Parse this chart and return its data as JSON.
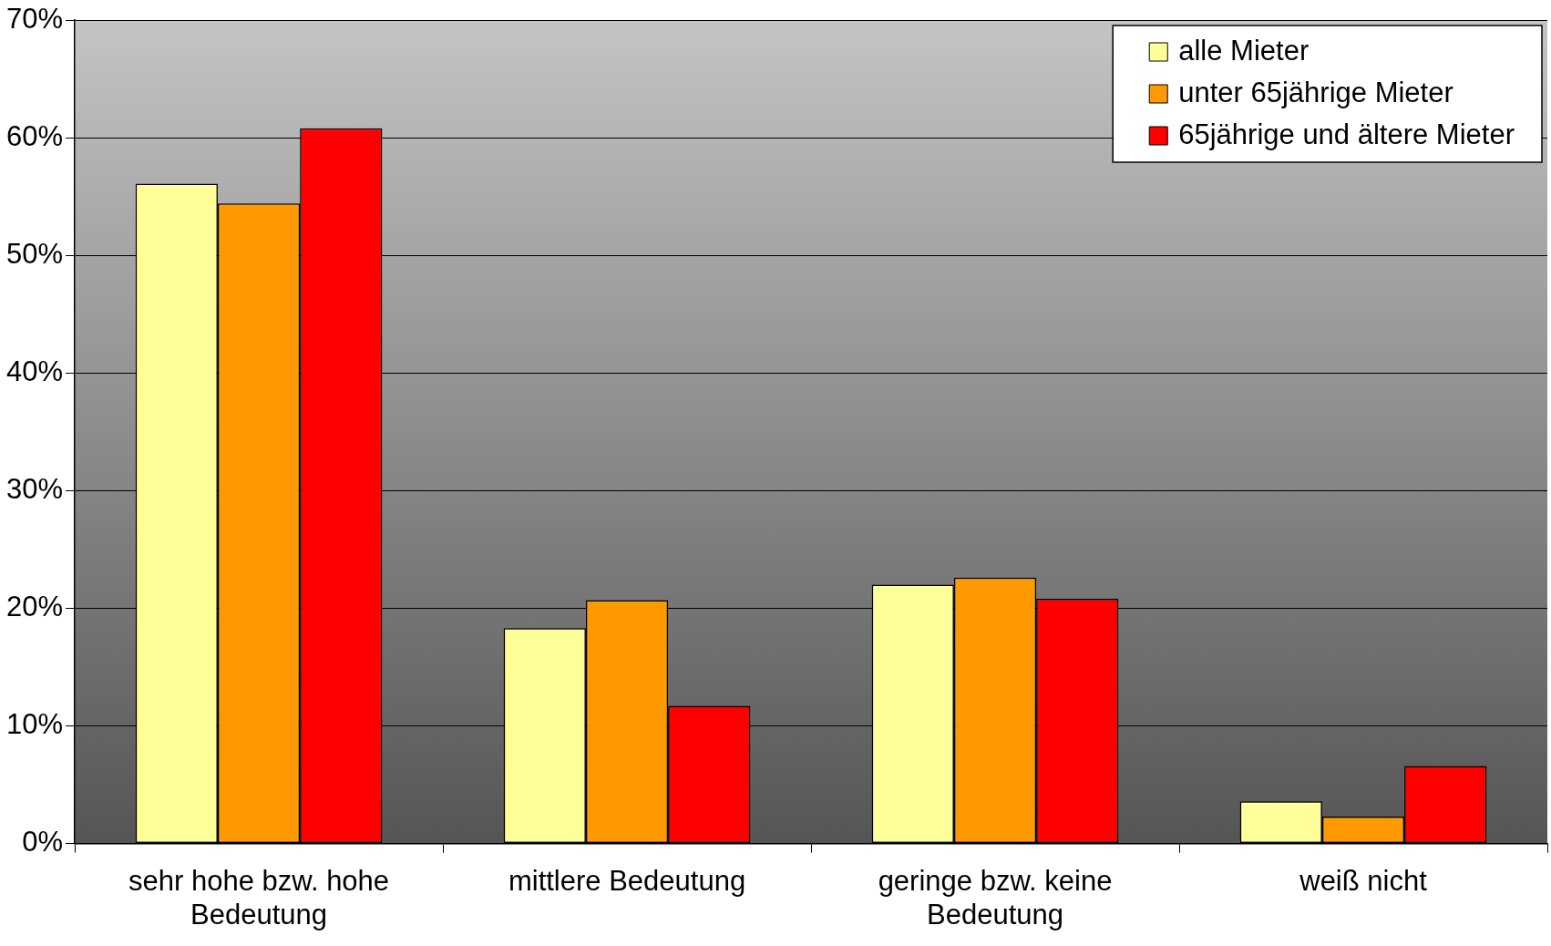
{
  "chart_data": {
    "type": "bar",
    "categories": [
      "sehr hohe bzw. hohe Bedeutung",
      "mittlere Bedeutung",
      "geringe bzw. keine Bedeutung",
      "weiß nicht"
    ],
    "series": [
      {
        "name": "alle Mieter",
        "color": "#ffff99",
        "values": [
          56.1,
          18.3,
          22.0,
          3.6
        ]
      },
      {
        "name": "unter 65jährige Mieter",
        "color": "#ff9900",
        "values": [
          54.4,
          20.7,
          22.6,
          2.3
        ]
      },
      {
        "name": "65jährige und ältere Mieter",
        "color": "#ff0000",
        "values": [
          60.8,
          11.7,
          20.8,
          6.6
        ]
      }
    ],
    "ylim": [
      0,
      70
    ],
    "yticks": [
      {
        "value": 0,
        "label": "0%"
      },
      {
        "value": 10,
        "label": "10%"
      },
      {
        "value": 20,
        "label": "20%"
      },
      {
        "value": 30,
        "label": "30%"
      },
      {
        "value": 40,
        "label": "40%"
      },
      {
        "value": 50,
        "label": "50%"
      },
      {
        "value": 60,
        "label": "60%"
      },
      {
        "value": 70,
        "label": "70%"
      }
    ],
    "grid": "y",
    "legend": "top right"
  }
}
